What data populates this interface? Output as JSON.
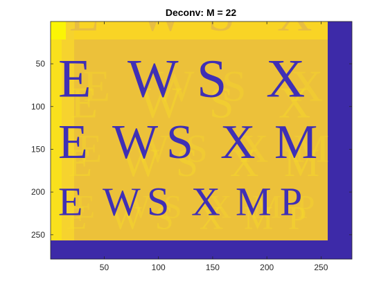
{
  "figure": {
    "title": "Deconv: M = 22",
    "colors": {
      "background_pale": "#ecc13a",
      "band": "#f6cc30",
      "letter_blue": "#3f2fb5",
      "border_blue": "#3d2aa8",
      "bright_yellow": "#fbf505",
      "ghost_yellow": "#f9dd28",
      "top_band": "#f9d425"
    }
  },
  "chart_data": {
    "type": "heatmap",
    "title": "Deconv: M = 22",
    "xlabel": "",
    "ylabel": "",
    "x_ticks": [
      "50",
      "100",
      "150",
      "200",
      "250"
    ],
    "y_ticks": [
      "50",
      "100",
      "150",
      "200",
      "250"
    ],
    "xlim": [
      0.5,
      278.5
    ],
    "ylim": [
      0.5,
      278.5
    ],
    "image_rows": [
      {
        "letters": [
          "E",
          "W",
          "S",
          "X"
        ],
        "y_center": 67
      },
      {
        "letters": [
          "E",
          "W",
          "S",
          "X",
          "M"
        ],
        "y_center": 141
      },
      {
        "letters": [
          "E",
          "W",
          "S",
          "X",
          "M",
          "P"
        ],
        "y_center": 211
      }
    ]
  }
}
